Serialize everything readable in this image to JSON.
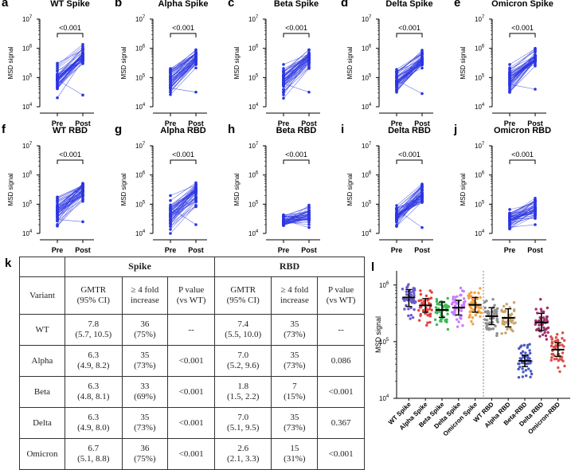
{
  "panels_top": [
    {
      "letter": "a",
      "title": "WT Spike",
      "pvalue": "<0.001",
      "pre_mean": 5.05,
      "post_mean": 5.78,
      "pre_min": 4.1,
      "pre_max": 5.7,
      "post_min": 5.4,
      "post_max": 6.15,
      "post_low": 4.4
    },
    {
      "letter": "b",
      "title": "Alpha Spike",
      "pvalue": "<0.001",
      "pre_mean": 4.95,
      "post_mean": 5.7,
      "pre_min": 4.15,
      "pre_max": 5.65,
      "post_min": 5.3,
      "post_max": 6.0,
      "post_low": 4.5
    },
    {
      "letter": "c",
      "title": "Beta Spike",
      "pvalue": "<0.001",
      "pre_mean": 4.9,
      "post_mean": 5.65,
      "pre_min": 4.2,
      "pre_max": 5.6,
      "post_min": 5.2,
      "post_max": 5.95,
      "post_low": 4.5
    },
    {
      "letter": "d",
      "title": "Delta Spike",
      "pvalue": "<0.001",
      "pre_mean": 4.95,
      "post_mean": 5.65,
      "pre_min": 4.15,
      "pre_max": 5.6,
      "post_min": 5.3,
      "post_max": 6.0,
      "post_low": 4.45
    },
    {
      "letter": "e",
      "title": "Omicron Spike",
      "pvalue": "<0.001",
      "pre_mean": 4.95,
      "post_mean": 5.7,
      "pre_min": 4.2,
      "pre_max": 5.7,
      "post_min": 5.3,
      "post_max": 6.0,
      "post_low": 4.6
    }
  ],
  "panels_mid": [
    {
      "letter": "f",
      "title": "WT RBD",
      "pvalue": "<0.001",
      "pre_mean": 4.75,
      "post_mean": 5.45,
      "pre_min": 4.05,
      "pre_max": 5.75,
      "post_min": 4.9,
      "post_max": 6.0,
      "post_low": 4.4
    },
    {
      "letter": "g",
      "title": "Alpha RBD",
      "pvalue": "<0.001",
      "pre_mean": 4.65,
      "post_mean": 5.4,
      "pre_min": 4.0,
      "pre_max": 5.75,
      "post_min": 4.9,
      "post_max": 6.0,
      "post_low": 4.3
    },
    {
      "letter": "h",
      "title": "Beta RBD",
      "pvalue": "<0.001",
      "pre_mean": 4.45,
      "post_mean": 4.6,
      "pre_min": 4.15,
      "pre_max": 4.8,
      "post_min": 4.3,
      "post_max": 5.2,
      "post_low": 4.2
    },
    {
      "letter": "i",
      "title": "Delta RBD",
      "pvalue": "<0.001",
      "pre_mean": 4.6,
      "post_mean": 5.35,
      "pre_min": 4.05,
      "pre_max": 5.1,
      "post_min": 4.8,
      "post_max": 6.0,
      "post_low": 4.2
    },
    {
      "letter": "j",
      "title": "Omicron RBD",
      "pvalue": "<0.001",
      "pre_mean": 4.5,
      "post_mean": 4.85,
      "pre_min": 4.1,
      "pre_max": 4.95,
      "post_min": 4.4,
      "post_max": 5.55,
      "post_low": 4.3
    }
  ],
  "axis": {
    "ylabel": "MSD signal",
    "ymin_exp": 4,
    "ymax_exp": 7,
    "tick_base": "10",
    "tick_exps": [
      "4",
      "5",
      "6",
      "7"
    ],
    "xcats": [
      "Pre",
      "Post"
    ]
  },
  "table": {
    "letter": "k",
    "group_spike": "Spike",
    "group_rbd": "RBD",
    "col_variant": "Variant",
    "col_gmtr": [
      "GMTR",
      "(95% CI)"
    ],
    "col_fold": [
      "≥ 4 fold",
      "increase"
    ],
    "col_p": [
      "P value",
      "(vs WT)"
    ],
    "rows": [
      {
        "variant": "WT",
        "s_gmtr": "7.8",
        "s_ci": "(5.7, 10.5)",
        "s_n": "36",
        "s_pct": "(75%)",
        "s_p": "--",
        "r_gmtr": "7.4",
        "r_ci": "(5.5, 10.0)",
        "r_n": "35",
        "r_pct": "(73%)",
        "r_p": "--"
      },
      {
        "variant": "Alpha",
        "s_gmtr": "6.3",
        "s_ci": "(4.9, 8.2)",
        "s_n": "35",
        "s_pct": "(73%)",
        "s_p": "<0.001",
        "r_gmtr": "7.0",
        "r_ci": "(5.2, 9.6)",
        "r_n": "35",
        "r_pct": "(73%)",
        "r_p": "0.086"
      },
      {
        "variant": "Beta",
        "s_gmtr": "6.3",
        "s_ci": "(4.8, 8.1)",
        "s_n": "33",
        "s_pct": "(69%)",
        "s_p": "<0.001",
        "r_gmtr": "1.8",
        "r_ci": "(1.5, 2.2)",
        "r_n": "7",
        "r_pct": "(15%)",
        "r_p": "<0.001"
      },
      {
        "variant": "Delta",
        "s_gmtr": "6.3",
        "s_ci": "(4.9, 8.0)",
        "s_n": "35",
        "s_pct": "(73%)",
        "s_p": "<0.001",
        "r_gmtr": "7.0",
        "r_ci": "(5.1, 9.5)",
        "r_n": "35",
        "r_pct": "(73%)",
        "r_p": "0.367"
      },
      {
        "variant": "Omicron",
        "s_gmtr": "6.7",
        "s_ci": "(5.1, 8.8)",
        "s_n": "36",
        "s_pct": "(75%)",
        "s_p": "<0.001",
        "r_gmtr": "2.6",
        "r_ci": "(2.1, 3.3)",
        "r_n": "15",
        "r_pct": "(31%)",
        "r_p": "<0.001"
      }
    ]
  },
  "panel_l": {
    "letter": "l",
    "ylabel": "MSD signal",
    "tick_base": "10",
    "tick_exps": [
      "4",
      "5",
      "6"
    ],
    "categories": [
      "WT Spike",
      "Alpha Spike",
      "Beta Spike",
      "Delta Spike",
      "Omicron Spike",
      "WT RBD",
      "Alpha RBD",
      "Beta-RBD",
      "Delta RBD",
      "Omicron-RBD"
    ],
    "colors": [
      "#6a5acd",
      "#e8413c",
      "#3cba54",
      "#c77dff",
      "#f5a142",
      "#8f8f8f",
      "#c9a46a",
      "#4a58c6",
      "#a0306a",
      "#d9504a"
    ],
    "means": [
      5.78,
      5.64,
      5.56,
      5.6,
      5.65,
      5.45,
      5.42,
      4.66,
      5.34,
      4.86
    ],
    "ci_low": [
      5.62,
      5.52,
      5.43,
      5.47,
      5.52,
      5.3,
      5.26,
      4.56,
      5.2,
      4.74
    ],
    "ci_high": [
      5.92,
      5.76,
      5.7,
      5.73,
      5.78,
      5.6,
      5.58,
      4.76,
      5.5,
      4.98
    ],
    "mins": [
      4.4,
      4.45,
      4.45,
      4.45,
      4.5,
      4.5,
      4.55,
      4.2,
      4.45,
      4.2
    ],
    "maxs": [
      6.05,
      5.9,
      5.85,
      5.95,
      5.95,
      5.95,
      5.95,
      5.1,
      6.0,
      5.45
    ]
  },
  "chart_data": [
    {
      "type": "scatter",
      "title": "WT Spike",
      "xlabel": "",
      "ylabel": "MSD signal",
      "categories": [
        "Pre",
        "Post"
      ],
      "ylim": [
        10000,
        10000000
      ],
      "yscale": "log",
      "annotation": "<0.001",
      "note": "paired pre/post lines per subject"
    },
    {
      "type": "scatter",
      "title": "Alpha Spike",
      "ylabel": "MSD signal",
      "categories": [
        "Pre",
        "Post"
      ],
      "ylim": [
        10000,
        10000000
      ],
      "yscale": "log",
      "annotation": "<0.001"
    },
    {
      "type": "scatter",
      "title": "Beta Spike",
      "ylabel": "MSD signal",
      "categories": [
        "Pre",
        "Post"
      ],
      "ylim": [
        10000,
        10000000
      ],
      "yscale": "log",
      "annotation": "<0.001"
    },
    {
      "type": "scatter",
      "title": "Delta Spike",
      "ylabel": "MSD signal",
      "categories": [
        "Pre",
        "Post"
      ],
      "ylim": [
        10000,
        10000000
      ],
      "yscale": "log",
      "annotation": "<0.001"
    },
    {
      "type": "scatter",
      "title": "Omicron Spike",
      "ylabel": "MSD signal",
      "categories": [
        "Pre",
        "Post"
      ],
      "ylim": [
        10000,
        10000000
      ],
      "yscale": "log",
      "annotation": "<0.001"
    },
    {
      "type": "scatter",
      "title": "WT RBD",
      "ylabel": "MSD signal",
      "categories": [
        "Pre",
        "Post"
      ],
      "ylim": [
        10000,
        10000000
      ],
      "yscale": "log",
      "annotation": "<0.001"
    },
    {
      "type": "scatter",
      "title": "Alpha RBD",
      "ylabel": "MSD signal",
      "categories": [
        "Pre",
        "Post"
      ],
      "ylim": [
        10000,
        10000000
      ],
      "yscale": "log",
      "annotation": "<0.001"
    },
    {
      "type": "scatter",
      "title": "Beta RBD",
      "ylabel": "MSD signal",
      "categories": [
        "Pre",
        "Post"
      ],
      "ylim": [
        10000,
        10000000
      ],
      "yscale": "log",
      "annotation": "<0.001"
    },
    {
      "type": "scatter",
      "title": "Delta RBD",
      "ylabel": "MSD signal",
      "categories": [
        "Pre",
        "Post"
      ],
      "ylim": [
        10000,
        10000000
      ],
      "yscale": "log",
      "annotation": "<0.001"
    },
    {
      "type": "scatter",
      "title": "Omicron RBD",
      "ylabel": "MSD signal",
      "categories": [
        "Pre",
        "Post"
      ],
      "ylim": [
        10000,
        10000000
      ],
      "yscale": "log",
      "annotation": "<0.001"
    },
    {
      "type": "scatter",
      "title": "",
      "ylabel": "MSD signal",
      "yscale": "log",
      "ylim": [
        10000,
        2000000
      ],
      "categories": [
        "WT Spike",
        "Alpha Spike",
        "Beta Spike",
        "Delta Spike",
        "Omicron Spike",
        "WT RBD",
        "Alpha RBD",
        "Beta-RBD",
        "Delta RBD",
        "Omicron-RBD"
      ],
      "geometric_means": [
        600000,
        440000,
        360000,
        400000,
        450000,
        280000,
        260000,
        46000,
        220000,
        72000
      ]
    },
    {
      "type": "table",
      "title": "Variant GMTR table"
    }
  ]
}
